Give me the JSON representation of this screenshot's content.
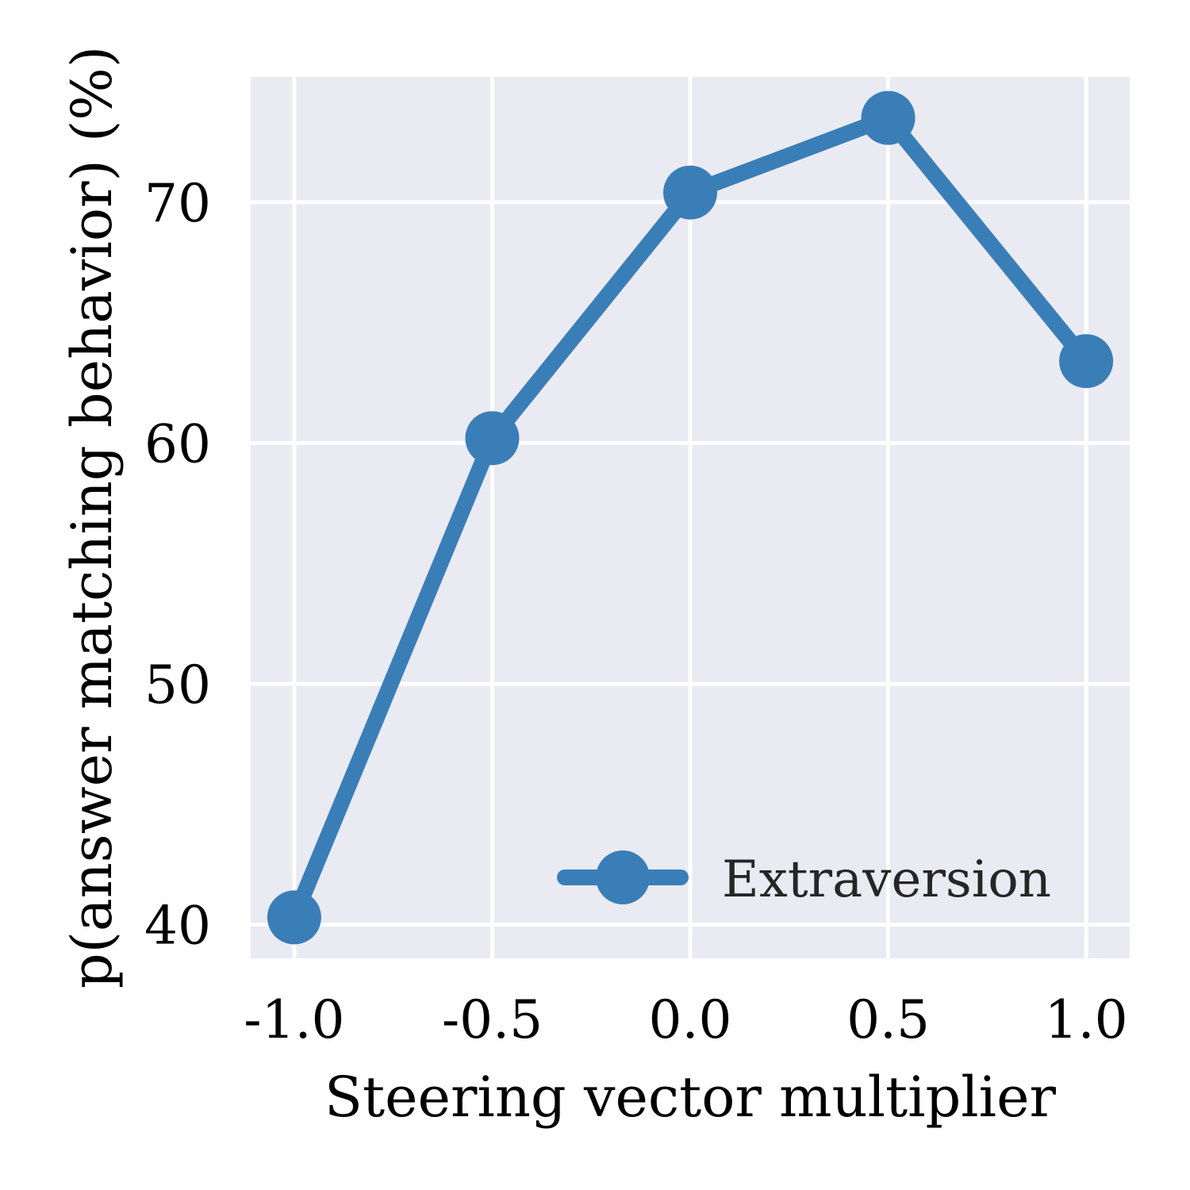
{
  "chart_data": {
    "type": "line",
    "x": [
      -1.0,
      -0.5,
      0.0,
      0.5,
      1.0
    ],
    "series": [
      {
        "name": "Extraversion",
        "values": [
          40.3,
          60.2,
          70.4,
          73.5,
          63.4
        ]
      }
    ],
    "xlabel": "Steering vector multiplier",
    "ylabel": "p(answer matching behavior) (%)",
    "xticks": [
      "-1.0",
      "-0.5",
      "0.0",
      "0.5",
      "1.0"
    ],
    "yticks": [
      "40",
      "50",
      "60",
      "70"
    ],
    "xlim": [
      -1.11,
      1.11
    ],
    "ylim": [
      38.6,
      75.2
    ],
    "grid": true,
    "legend_position": "lower-right",
    "colors": {
      "series": "#3a7eb8",
      "plot_background": "#eaeaf2",
      "grid": "#ffffff"
    }
  }
}
